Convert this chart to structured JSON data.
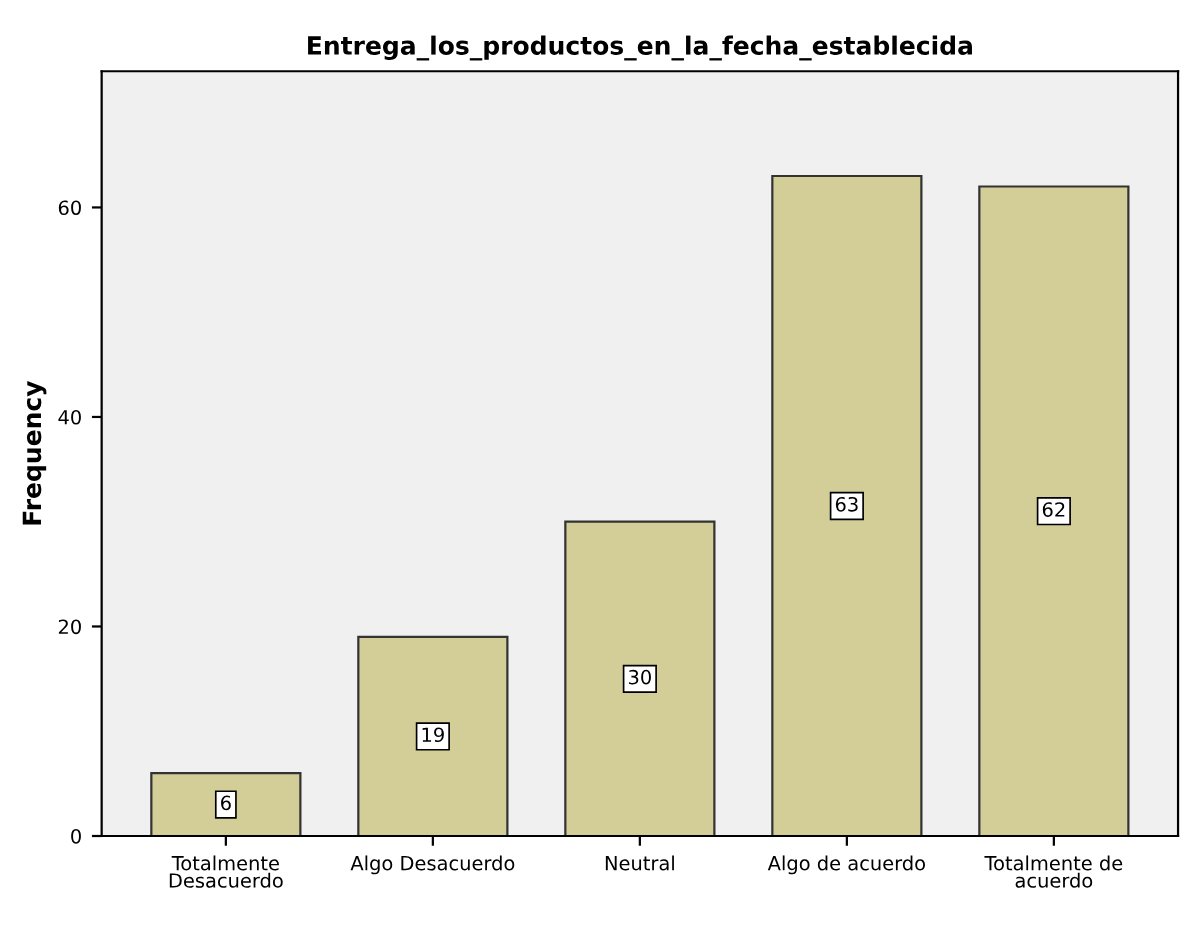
{
  "chart_data": {
    "type": "bar",
    "title": "Entrega_los_productos_en_la_fecha_establecida",
    "ylabel": "Frequency",
    "categories": [
      "Totalmente\nDesacuerdo",
      "Algo Desacuerdo",
      "Neutral",
      "Algo de acuerdo",
      "Totalmente de\nacuerdo"
    ],
    "values": [
      6,
      19,
      30,
      63,
      62
    ],
    "color": "#d3ce97",
    "ylim": [
      0,
      73
    ],
    "yticks": [
      0,
      20,
      40,
      60
    ],
    "grid": false,
    "data_labels": true
  }
}
